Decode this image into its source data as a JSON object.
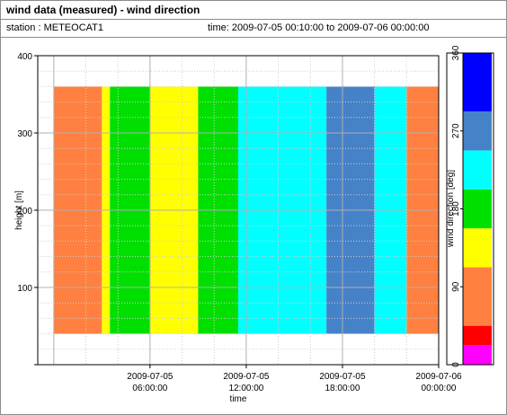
{
  "header": {
    "title": "wind data (measured) - wind direction",
    "station": "station : METEOCAT1",
    "time_range": "time: 2009-07-05 00:10:00 to 2009-07-06 00:00:00"
  },
  "chart_data": {
    "type": "heatmap",
    "xlabel": "time",
    "ylabel": "height [m]",
    "colorbar_label": "wind direction [deg]",
    "xlim_hours": [
      -1,
      24
    ],
    "ylim": [
      0,
      400
    ],
    "x_ticks": [
      {
        "hour": 6,
        "line1": "2009-07-05",
        "line2": "06:00:00"
      },
      {
        "hour": 12,
        "line1": "2009-07-05",
        "line2": "12:00:00"
      },
      {
        "hour": 18,
        "line1": "2009-07-05",
        "line2": "18:00:00"
      },
      {
        "hour": 24,
        "line1": "2009-07-06",
        "line2": "00:00:00"
      }
    ],
    "y_ticks": [
      100,
      200,
      300,
      400
    ],
    "grid": true,
    "data_height_range": [
      40,
      360
    ],
    "colorbar": {
      "ticks": [
        0,
        90,
        180,
        270,
        360
      ],
      "bins": [
        {
          "from": 0,
          "to": 22.5,
          "color": "#ff00ff"
        },
        {
          "from": 22.5,
          "to": 45,
          "color": "#ff0000"
        },
        {
          "from": 45,
          "to": 112.5,
          "color": "#ff8040"
        },
        {
          "from": 112.5,
          "to": 157.5,
          "color": "#ffff00"
        },
        {
          "from": 157.5,
          "to": 202.5,
          "color": "#00e000"
        },
        {
          "from": 202.5,
          "to": 247.5,
          "color": "#00ffff"
        },
        {
          "from": 247.5,
          "to": 292.5,
          "color": "#4682c8"
        },
        {
          "from": 292.5,
          "to": 360,
          "color": "#0000ff"
        }
      ]
    },
    "segments": [
      {
        "start_hour": 0.0,
        "end_hour": 3.0,
        "direction_deg": 80
      },
      {
        "start_hour": 3.0,
        "end_hour": 3.5,
        "direction_deg": 135
      },
      {
        "start_hour": 3.5,
        "end_hour": 6.0,
        "direction_deg": 180
      },
      {
        "start_hour": 6.0,
        "end_hour": 9.0,
        "direction_deg": 135
      },
      {
        "start_hour": 9.0,
        "end_hour": 11.5,
        "direction_deg": 180
      },
      {
        "start_hour": 11.5,
        "end_hour": 14.5,
        "direction_deg": 225
      },
      {
        "start_hour": 14.5,
        "end_hour": 17.0,
        "direction_deg": 225
      },
      {
        "start_hour": 17.0,
        "end_hour": 20.0,
        "direction_deg": 270
      },
      {
        "start_hour": 20.0,
        "end_hour": 22.0,
        "direction_deg": 225
      },
      {
        "start_hour": 22.0,
        "end_hour": 24.0,
        "direction_deg": 80
      }
    ]
  }
}
